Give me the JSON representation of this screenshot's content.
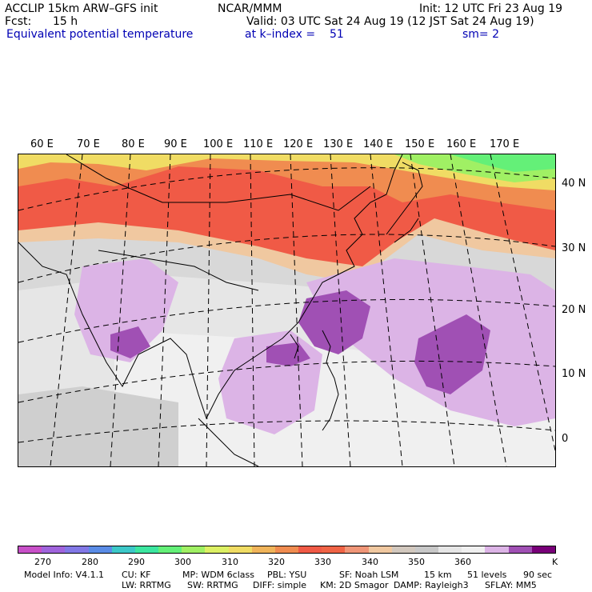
{
  "header": {
    "model": "ACCLIP 15km ARW–GFS init",
    "org": "NCAR/MMM",
    "init": "Init: 12 UTC Fri 23 Aug 19",
    "fcst_label": "Fcst:",
    "fcst_value": "15 h",
    "valid": "Valid: 03 UTC Sat 24 Aug 19 (12 JST Sat 24 Aug 19)",
    "field": "Equivalent potential temperature",
    "level": "at k–index =",
    "level_value": "51",
    "smooth": "sm= 2"
  },
  "map": {
    "lon_labels": [
      "60 E",
      "70 E",
      "80 E",
      "90 E",
      "100 E",
      "110 E",
      "120 E",
      "130 E",
      "140 E",
      "150 E",
      "160 E",
      "170 E"
    ],
    "lat_labels": [
      "40 N",
      "30 N",
      "20 N",
      "10 N",
      "0"
    ]
  },
  "colorbar": {
    "colors": [
      "#c850c8",
      "#a064dc",
      "#8278e6",
      "#5a8ce6",
      "#3cc8c8",
      "#3ce6a0",
      "#64f078",
      "#a0f064",
      "#dcf064",
      "#f0dc64",
      "#f0b45a",
      "#f08c50",
      "#f05a46",
      "#f06446",
      "#f09678",
      "#f0c8a0",
      "#d2c8be",
      "#c8c8c8",
      "#e6e6e6",
      "#f0f0f0",
      "#dcb4e6",
      "#a050b4",
      "#780078"
    ],
    "labels": [
      "270",
      "280",
      "290",
      "300",
      "310",
      "320",
      "330",
      "340",
      "350",
      "360"
    ],
    "unit": "K"
  },
  "footer": {
    "line1": [
      "Model Info: V4.1.1",
      "CU: KF",
      "MP: WDM 6class",
      "PBL: YSU",
      "SF: Noah LSM",
      "15 km",
      "51 levels",
      "90 sec"
    ],
    "line2": [
      "LW: RRTMG",
      "SW: RRTMG",
      "DIFF: simple",
      "KM: 2D Smagor",
      "DAMP: Rayleigh3",
      "SFLAY: MM5"
    ]
  }
}
